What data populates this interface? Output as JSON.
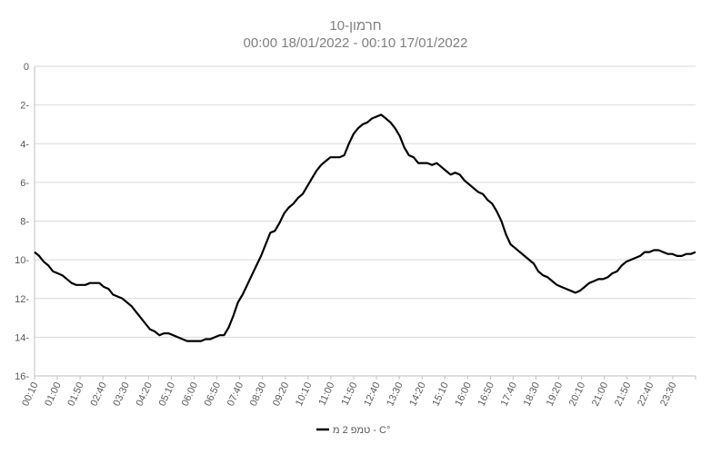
{
  "chart_data": {
    "type": "line",
    "title": "10-חרמון",
    "subtitle": "00:00 18/01/2022  -  00:10 17/01/2022",
    "xlabel": "",
    "ylabel": "",
    "ylim": [
      -16,
      0
    ],
    "y_ticks": [
      0,
      -2,
      -4,
      -6,
      -8,
      -10,
      -12,
      -14,
      -16
    ],
    "y_tick_labels": [
      "0",
      "2-",
      "4-",
      "6-",
      "8-",
      "10-",
      "12-",
      "14-",
      "16-"
    ],
    "x_tick_labels": [
      "00:10",
      "01:00",
      "01:50",
      "02:40",
      "03:30",
      "04:20",
      "05:10",
      "06:00",
      "06:50",
      "07:40",
      "08:30",
      "09:20",
      "10:10",
      "11:00",
      "11:50",
      "12:40",
      "13:30",
      "14:20",
      "15:10",
      "16:00",
      "16:50",
      "17:40",
      "18:30",
      "19:20",
      "20:10",
      "21:00",
      "21:50",
      "22:40",
      "23:30"
    ],
    "grid": true,
    "legend_position": "bottom",
    "series": [
      {
        "name": "טמפ 2 מ - C°",
        "color": "#000000",
        "values": [
          -9.6,
          -9.8,
          -10.1,
          -10.3,
          -10.6,
          -10.7,
          -10.8,
          -11.0,
          -11.2,
          -11.3,
          -11.3,
          -11.3,
          -11.2,
          -11.2,
          -11.2,
          -11.4,
          -11.5,
          -11.8,
          -11.9,
          -12.0,
          -12.2,
          -12.4,
          -12.7,
          -13.0,
          -13.3,
          -13.6,
          -13.7,
          -13.9,
          -13.8,
          -13.8,
          -13.9,
          -14.0,
          -14.1,
          -14.2,
          -14.2,
          -14.2,
          -14.2,
          -14.1,
          -14.1,
          -14.0,
          -13.9,
          -13.9,
          -13.5,
          -12.9,
          -12.2,
          -11.8,
          -11.3,
          -10.8,
          -10.3,
          -9.8,
          -9.2,
          -8.6,
          -8.5,
          -8.1,
          -7.6,
          -7.3,
          -7.1,
          -6.8,
          -6.6,
          -6.2,
          -5.8,
          -5.4,
          -5.1,
          -4.9,
          -4.7,
          -4.7,
          -4.7,
          -4.6,
          -4.0,
          -3.5,
          -3.2,
          -3.0,
          -2.9,
          -2.7,
          -2.6,
          -2.5,
          -2.7,
          -2.9,
          -3.2,
          -3.6,
          -4.2,
          -4.6,
          -4.7,
          -5.0,
          -5.0,
          -5.0,
          -5.1,
          -5.0,
          -5.2,
          -5.4,
          -5.6,
          -5.5,
          -5.6,
          -5.9,
          -6.1,
          -6.3,
          -6.5,
          -6.6,
          -6.9,
          -7.1,
          -7.5,
          -8.0,
          -8.7,
          -9.2,
          -9.4,
          -9.6,
          -9.8,
          -10.0,
          -10.2,
          -10.6,
          -10.8,
          -10.9,
          -11.1,
          -11.3,
          -11.4,
          -11.5,
          -11.6,
          -11.7,
          -11.6,
          -11.4,
          -11.2,
          -11.1,
          -11.0,
          -11.0,
          -10.9,
          -10.7,
          -10.6,
          -10.3,
          -10.1,
          -10.0,
          -9.9,
          -9.8,
          -9.6,
          -9.6,
          -9.5,
          -9.5,
          -9.6,
          -9.7,
          -9.7,
          -9.8,
          -9.8,
          -9.7,
          -9.7,
          -9.6
        ]
      }
    ]
  }
}
